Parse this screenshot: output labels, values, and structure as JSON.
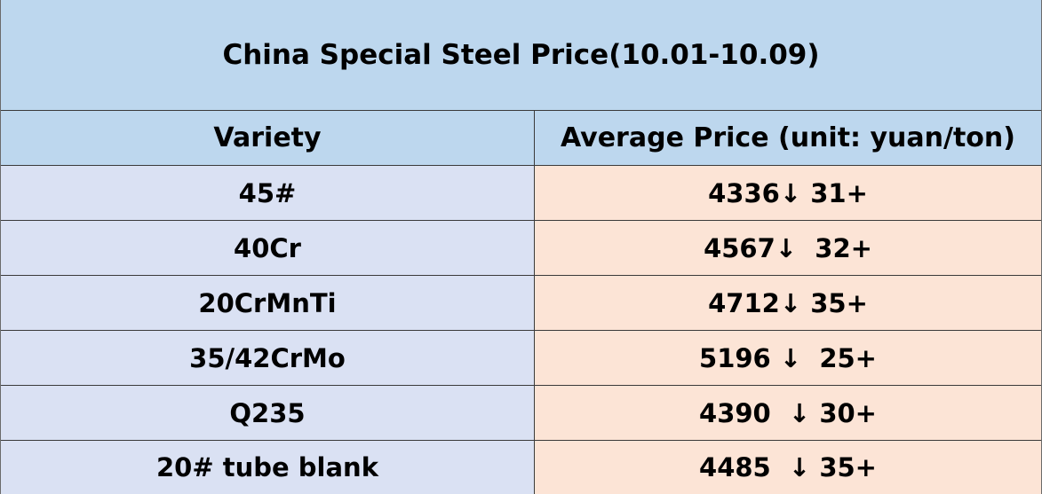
{
  "header": {
    "title": "China Special Steel Price(10.01-10.09)"
  },
  "table": {
    "columns": [
      "Variety",
      "Average Price (unit: yuan/ton)"
    ],
    "rows": [
      [
        "45#",
        "4336↓ 31+"
      ],
      [
        "40Cr",
        "4567↓  32+"
      ],
      [
        "20CrMnTi",
        "4712↓ 35+"
      ],
      [
        "35/42CrMo",
        "5196 ↓  25+"
      ],
      [
        "Q235",
        "4390  ↓ 30+"
      ],
      [
        "20# tube blank",
        "4485  ↓ 35+"
      ]
    ]
  }
}
